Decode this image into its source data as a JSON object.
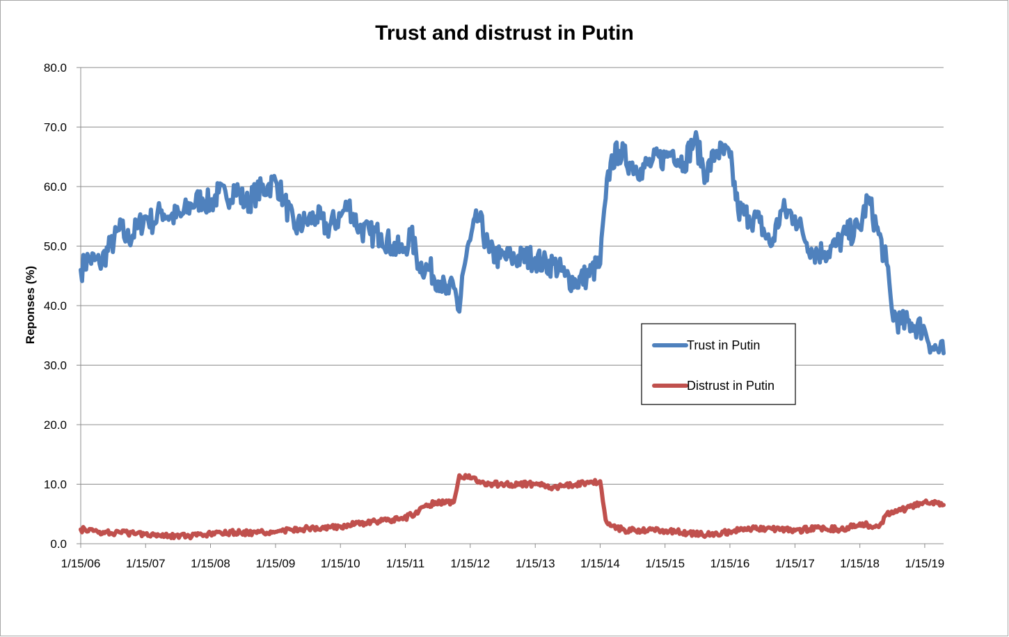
{
  "chart_data": {
    "type": "line",
    "title": "Trust and distrust in Putin",
    "xlabel": "",
    "ylabel": "Reponses (%)",
    "ylim": [
      0,
      80
    ],
    "y_ticks": [
      "0.0",
      "10.0",
      "20.0",
      "30.0",
      "40.0",
      "50.0",
      "60.0",
      "70.0",
      "80.0"
    ],
    "x_ticks": [
      "1/15/06",
      "1/15/07",
      "1/15/08",
      "1/15/09",
      "1/15/10",
      "1/15/11",
      "1/15/12",
      "1/15/13",
      "1/15/14",
      "1/15/15",
      "1/15/16",
      "1/15/17",
      "1/15/18",
      "1/15/19"
    ],
    "xlim": [
      "2006-01-15",
      "2019-05-01"
    ],
    "grid": "horizontal",
    "legend_position": "center-right",
    "series": [
      {
        "name": "Trust in Putin",
        "color": "#4f81bd",
        "x": [
          "2006-01-15",
          "2006-03-01",
          "2006-05-01",
          "2006-07-01",
          "2006-09-01",
          "2006-10-01",
          "2006-12-01",
          "2007-01-15",
          "2007-03-01",
          "2007-04-15",
          "2007-06-01",
          "2007-08-01",
          "2007-10-01",
          "2007-12-01",
          "2008-01-15",
          "2008-03-01",
          "2008-04-15",
          "2008-06-01",
          "2008-08-01",
          "2008-10-01",
          "2008-12-01",
          "2009-01-15",
          "2009-03-01",
          "2009-05-01",
          "2009-07-01",
          "2009-09-01",
          "2009-11-01",
          "2010-01-15",
          "2010-03-01",
          "2010-05-01",
          "2010-07-01",
          "2010-09-01",
          "2010-11-01",
          "2011-01-01",
          "2011-02-15",
          "2011-04-01",
          "2011-06-01",
          "2011-08-01",
          "2011-09-01",
          "2011-10-15",
          "2011-11-15",
          "2011-12-01",
          "2012-01-15",
          "2012-03-01",
          "2012-05-01",
          "2012-07-01",
          "2012-09-01",
          "2012-11-01",
          "2013-01-15",
          "2013-03-01",
          "2013-05-01",
          "2013-07-01",
          "2013-09-01",
          "2013-11-01",
          "2014-01-15",
          "2014-02-15",
          "2014-03-15",
          "2014-05-01",
          "2014-07-01",
          "2014-09-01",
          "2014-11-01",
          "2015-01-15",
          "2015-03-01",
          "2015-05-01",
          "2015-07-01",
          "2015-09-01",
          "2015-11-01",
          "2016-01-15",
          "2016-03-01",
          "2016-05-01",
          "2016-07-01",
          "2016-09-01",
          "2016-11-01",
          "2017-01-15",
          "2017-03-01",
          "2017-05-01",
          "2017-07-01",
          "2017-09-01",
          "2017-11-01",
          "2018-01-15",
          "2018-03-01",
          "2018-05-01",
          "2018-06-15",
          "2018-07-15",
          "2018-09-01",
          "2018-11-01",
          "2019-01-15",
          "2019-03-01",
          "2019-05-01"
        ],
        "values": [
          46,
          48,
          47,
          50,
          53,
          51,
          53,
          55,
          54,
          56,
          55,
          55,
          57,
          58,
          57,
          59,
          58,
          60,
          57,
          59,
          60,
          61,
          58,
          53,
          54,
          55,
          53,
          55,
          57,
          53,
          52,
          52,
          50,
          49,
          52,
          47,
          46,
          44,
          42,
          43,
          39,
          45,
          51,
          55,
          49,
          48,
          48,
          48,
          48,
          47,
          47,
          45,
          44,
          45,
          47,
          58,
          64,
          66,
          64,
          63,
          64,
          65,
          66,
          64,
          68,
          62,
          66,
          65,
          56,
          55,
          54,
          50,
          56,
          55,
          52,
          49,
          49,
          50,
          52,
          53,
          58,
          52,
          47,
          39,
          37,
          37,
          36,
          33,
          32
        ]
      },
      {
        "name": "Distrust in Putin",
        "color": "#c0504d",
        "x": [
          "2006-01-15",
          "2006-05-01",
          "2006-09-01",
          "2007-01-15",
          "2007-06-01",
          "2007-10-01",
          "2008-01-15",
          "2008-06-01",
          "2008-10-01",
          "2009-01-15",
          "2009-06-01",
          "2009-10-01",
          "2010-01-15",
          "2010-06-01",
          "2010-10-01",
          "2011-01-01",
          "2011-04-01",
          "2011-07-01",
          "2011-10-15",
          "2011-11-15",
          "2012-01-15",
          "2012-05-01",
          "2012-09-01",
          "2013-01-15",
          "2013-05-01",
          "2013-09-01",
          "2014-01-15",
          "2014-02-15",
          "2014-03-15",
          "2014-06-01",
          "2014-10-01",
          "2015-01-15",
          "2015-06-01",
          "2015-10-01",
          "2016-01-15",
          "2016-06-01",
          "2016-10-01",
          "2017-01-15",
          "2017-06-01",
          "2017-10-01",
          "2018-01-15",
          "2018-05-01",
          "2018-06-15",
          "2018-09-01",
          "2019-01-15",
          "2019-05-01"
        ],
        "values": [
          2.4,
          2,
          1.8,
          1.7,
          1.4,
          1.2,
          1.6,
          1.9,
          1.8,
          2,
          2.5,
          2.6,
          2.9,
          3.5,
          3.9,
          4.1,
          5.5,
          7,
          7,
          11.5,
          11,
          10,
          10,
          10,
          9.5,
          10,
          10.5,
          4,
          3,
          2.3,
          2.2,
          2.2,
          1.8,
          1.5,
          2,
          2.6,
          2.5,
          2.2,
          2.7,
          2.4,
          3.4,
          2.8,
          5,
          5.6,
          7,
          6.5
        ]
      }
    ]
  }
}
